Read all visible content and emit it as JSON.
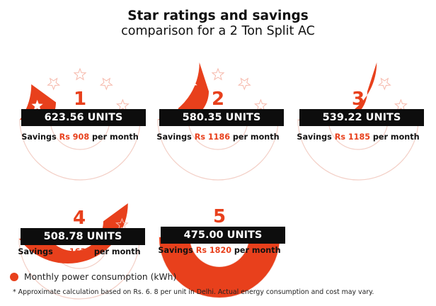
{
  "header": {
    "title": "Star ratings and savings",
    "subtitle": "comparison for a 2 Ton Split AC"
  },
  "colors": {
    "accent": "#e8401c",
    "bar": "#0d0d0d",
    "empty_star_outline": "#f6b8aa"
  },
  "ratings": [
    {
      "stars": 1,
      "number": "1",
      "units": "623.56 UNITS",
      "savings_prefix": "Savings",
      "savings_amount": "Rs 908",
      "savings_suffix": "per month"
    },
    {
      "stars": 2,
      "number": "2",
      "units": "580.35 UNITS",
      "savings_prefix": "Savings",
      "savings_amount": "Rs 1186",
      "savings_suffix": "per month"
    },
    {
      "stars": 3,
      "number": "3",
      "units": "539.22 UNITS",
      "savings_prefix": "Savings",
      "savings_amount": "Rs 1185",
      "savings_suffix": "per month"
    },
    {
      "stars": 4,
      "number": "4",
      "units": "508.78 UNITS",
      "savings_prefix": "Savings",
      "savings_amount": "Rs 1633",
      "savings_suffix": "per month"
    },
    {
      "stars": 5,
      "number": "5",
      "units": "475.00 UNITS",
      "savings_prefix": "Savings",
      "savings_amount": "Rs 1820",
      "savings_suffix": "per month"
    }
  ],
  "legend": {
    "label": "Monthly power consumption (kWh)"
  },
  "footnote": "* Approximate calculation based on Rs. 6. 8 per unit in Delhi. Actual energy consumption and cost may vary."
}
